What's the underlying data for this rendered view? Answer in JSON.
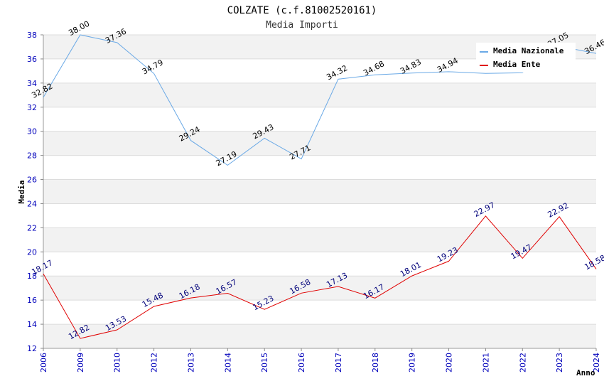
{
  "chart_data": {
    "type": "line",
    "title": "COLZATE (c.f.81002520161)",
    "subtitle": "Media Importi",
    "xlabel": "Anno",
    "ylabel": "Media",
    "categories": [
      "2006",
      "2009",
      "2010",
      "2012",
      "2013",
      "2014",
      "2015",
      "2016",
      "2017",
      "2018",
      "2019",
      "2020",
      "2021",
      "2022",
      "2023",
      "2024"
    ],
    "ylim": [
      12,
      38
    ],
    "yticks": [
      12,
      14,
      16,
      18,
      20,
      22,
      24,
      26,
      28,
      30,
      32,
      34,
      36,
      38
    ],
    "grid": true,
    "legend_position": "top-right",
    "series": [
      {
        "name": "Media Nazionale",
        "color": "#6aa9e6",
        "values": [
          32.82,
          38.0,
          37.36,
          34.79,
          29.24,
          27.19,
          29.43,
          27.71,
          34.32,
          34.68,
          34.83,
          34.94,
          34.8,
          34.85,
          37.05,
          36.46
        ],
        "labels": [
          "32.82",
          "38.00",
          "37.36",
          "34.79",
          "29.24",
          "27.19",
          "29.43",
          "27.71",
          "34.32",
          "34.68",
          "34.83",
          "34.94",
          "",
          "",
          "37.05",
          "36.46"
        ]
      },
      {
        "name": "Media Ente",
        "color": "#e00000",
        "values": [
          18.17,
          12.82,
          13.53,
          15.48,
          16.18,
          16.57,
          15.23,
          16.58,
          17.13,
          16.17,
          18.01,
          19.23,
          22.97,
          19.47,
          22.92,
          18.58
        ],
        "labels": [
          "18.17",
          "12.82",
          "13.53",
          "15.48",
          "16.18",
          "16.57",
          "15.23",
          "16.58",
          "17.13",
          "16.17",
          "18.01",
          "19.23",
          "22.97",
          "19.47",
          "22.92",
          "18.58"
        ]
      }
    ]
  }
}
